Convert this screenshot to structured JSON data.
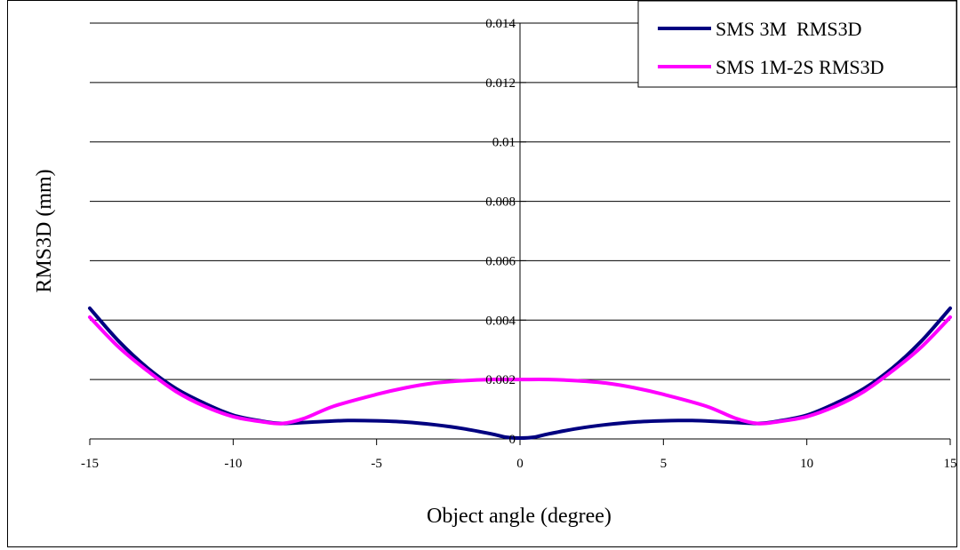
{
  "chart_data": {
    "type": "line",
    "title": "",
    "xlabel": "Object angle (degree)",
    "ylabel": "RMS3D (mm)",
    "xlim": [
      -15,
      15
    ],
    "ylim": [
      0,
      0.014
    ],
    "x_ticks": [
      "-15",
      "-10",
      "-5",
      "0",
      "5",
      "10",
      "15"
    ],
    "y_ticks": [
      "0",
      "0.002",
      "0.004",
      "0.006",
      "0.008",
      "0.01",
      "0.012",
      "0.014"
    ],
    "grid": "horizontal",
    "legend_position": "top-right",
    "series": [
      {
        "name": "SMS 3M  RMS3D",
        "color": "#000080",
        "x": [
          -15,
          -14,
          -13,
          -12,
          -11,
          -10,
          -9,
          -8.3,
          -7,
          -6,
          -5,
          -4,
          -3,
          -2,
          -1,
          -0.5,
          0,
          0.5,
          1,
          2,
          3,
          4,
          5,
          6,
          7,
          8.3,
          9,
          10,
          11,
          12,
          13,
          14,
          15
        ],
        "y": [
          0.0044,
          0.0033,
          0.0024,
          0.0017,
          0.0012,
          0.0008,
          0.0006,
          0.00052,
          0.00058,
          0.00062,
          0.00061,
          0.00057,
          0.00048,
          0.00035,
          0.00017,
          6e-05,
          3e-05,
          6e-05,
          0.00017,
          0.00035,
          0.00048,
          0.00057,
          0.00061,
          0.00062,
          0.00058,
          0.00052,
          0.0006,
          0.0008,
          0.0012,
          0.0017,
          0.0024,
          0.0033,
          0.0044
        ]
      },
      {
        "name": "SMS 1M-2S RMS3D",
        "color": "#ff00ff",
        "x": [
          -15,
          -14,
          -13,
          -12,
          -11,
          -10,
          -9,
          -8.3,
          -7.5,
          -6.5,
          -5,
          -4,
          -3,
          -2,
          -1,
          0,
          1,
          2,
          3,
          4,
          5,
          6.5,
          7.5,
          8.3,
          9,
          10,
          11,
          12,
          13,
          14,
          15
        ],
        "y": [
          0.0041,
          0.0031,
          0.0023,
          0.0016,
          0.0011,
          0.00075,
          0.00058,
          0.00052,
          0.0007,
          0.0011,
          0.0015,
          0.00172,
          0.00188,
          0.00196,
          0.002,
          0.002,
          0.002,
          0.00196,
          0.00188,
          0.00172,
          0.0015,
          0.0011,
          0.0007,
          0.00052,
          0.00058,
          0.00075,
          0.0011,
          0.0016,
          0.0023,
          0.0031,
          0.0041
        ]
      }
    ]
  }
}
